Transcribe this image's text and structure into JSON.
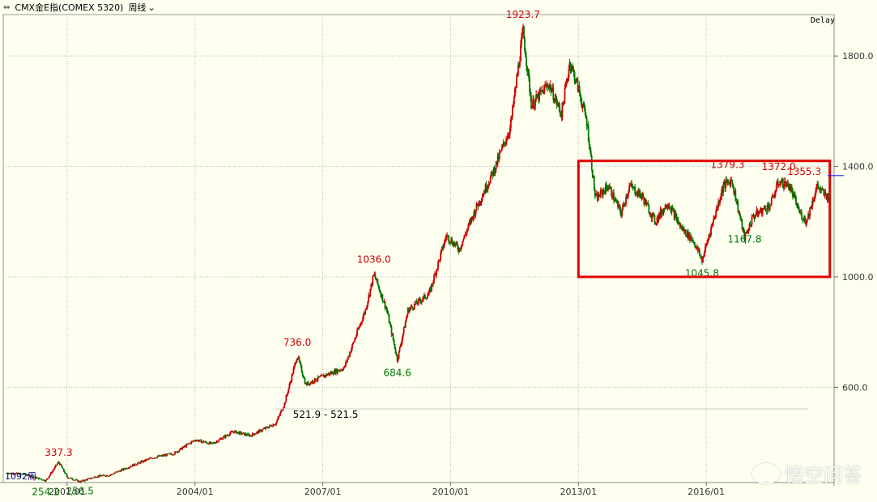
{
  "header": {
    "title": "CMX金E指(COMEX 5320)",
    "period_label": "周线",
    "delay_label": "Delay"
  },
  "watermark": {
    "text": "悟空问答"
  },
  "colors": {
    "up": "#cc0000",
    "down": "#007700",
    "grid": "#b8b8b8",
    "highlight_box": "#e00000",
    "axis_text": "#333333",
    "background": "#fffff0"
  },
  "chart_data": {
    "type": "candlestick",
    "y_ticks": [
      600,
      1000,
      1400,
      1800
    ],
    "y_tick_labels": [
      "600.0",
      "1000.0",
      "1400.0",
      "1800.0"
    ],
    "x_ticks": [
      "2001/01",
      "2004/01",
      "2007/01",
      "2010/01",
      "2013/01",
      "2016/01"
    ],
    "ylim": [
      255,
      1950
    ],
    "xlim": [
      1999.5,
      2019.0
    ],
    "grid": true,
    "bar_count_label": "1092周",
    "annotations": [
      {
        "x": 2000.5,
        "y": 254.2,
        "text": "254.2",
        "color": "down",
        "pos": "below"
      },
      {
        "x": 2000.8,
        "y": 337.3,
        "text": "337.3",
        "color": "up",
        "pos": "above"
      },
      {
        "x": 2001.3,
        "y": 256.5,
        "text": "256.5",
        "color": "down",
        "pos": "below"
      },
      {
        "x": 2006.4,
        "y": 736.0,
        "text": "736.0",
        "color": "up",
        "pos": "above"
      },
      {
        "x": 2008.2,
        "y": 1036.0,
        "text": "1036.0",
        "color": "up",
        "pos": "above"
      },
      {
        "x": 2008.75,
        "y": 684.6,
        "text": "684.6",
        "color": "down",
        "pos": "below"
      },
      {
        "x": 2011.7,
        "y": 1923.7,
        "text": "1923.7",
        "color": "up",
        "pos": "above"
      },
      {
        "x": 2015.9,
        "y": 1045.8,
        "text": "1045.8",
        "color": "down",
        "pos": "below"
      },
      {
        "x": 2016.5,
        "y": 1379.3,
        "text": "1379.3",
        "color": "up",
        "pos": "above"
      },
      {
        "x": 2017.7,
        "y": 1372.0,
        "text": "1372.0",
        "color": "up",
        "pos": "above"
      },
      {
        "x": 2016.9,
        "y": 1167.8,
        "text": "1167.8",
        "color": "down",
        "pos": "below"
      },
      {
        "x": 2018.3,
        "y": 1355.3,
        "text": "1355.3",
        "color": "up",
        "pos": "above"
      }
    ],
    "range_note": {
      "x": 2006.3,
      "y": 521.9,
      "text": "521.9 - 521.5"
    },
    "reference_line": {
      "y": 521.9,
      "x_start": 2005.9,
      "x_end": 2018.4
    },
    "highlight_box": {
      "x0": 2013.0,
      "x1": 2018.9,
      "y0": 1000,
      "y1": 1420
    },
    "last_price_marker": 1367,
    "price_path": [
      [
        1999.6,
        290
      ],
      [
        2000.0,
        285
      ],
      [
        2000.5,
        262
      ],
      [
        2000.8,
        330
      ],
      [
        2001.0,
        275
      ],
      [
        2001.3,
        258
      ],
      [
        2001.7,
        278
      ],
      [
        2002.0,
        282
      ],
      [
        2002.5,
        315
      ],
      [
        2003.0,
        345
      ],
      [
        2003.5,
        360
      ],
      [
        2004.0,
        410
      ],
      [
        2004.4,
        395
      ],
      [
        2004.9,
        440
      ],
      [
        2005.3,
        425
      ],
      [
        2005.9,
        470
      ],
      [
        2006.1,
        540
      ],
      [
        2006.4,
        715
      ],
      [
        2006.6,
        610
      ],
      [
        2007.0,
        640
      ],
      [
        2007.5,
        670
      ],
      [
        2008.0,
        880
      ],
      [
        2008.2,
        1010
      ],
      [
        2008.5,
        880
      ],
      [
        2008.75,
        700
      ],
      [
        2009.0,
        880
      ],
      [
        2009.5,
        940
      ],
      [
        2009.9,
        1150
      ],
      [
        2010.2,
        1100
      ],
      [
        2010.6,
        1250
      ],
      [
        2011.0,
        1380
      ],
      [
        2011.4,
        1540
      ],
      [
        2011.7,
        1890
      ],
      [
        2011.9,
        1620
      ],
      [
        2012.3,
        1700
      ],
      [
        2012.6,
        1590
      ],
      [
        2012.8,
        1780
      ],
      [
        2013.0,
        1680
      ],
      [
        2013.2,
        1560
      ],
      [
        2013.4,
        1280
      ],
      [
        2013.7,
        1330
      ],
      [
        2014.0,
        1230
      ],
      [
        2014.2,
        1330
      ],
      [
        2014.5,
        1290
      ],
      [
        2014.8,
        1200
      ],
      [
        2015.1,
        1270
      ],
      [
        2015.4,
        1180
      ],
      [
        2015.7,
        1130
      ],
      [
        2015.9,
        1060
      ],
      [
        2016.1,
        1170
      ],
      [
        2016.4,
        1330
      ],
      [
        2016.6,
        1350
      ],
      [
        2016.9,
        1140
      ],
      [
        2017.1,
        1220
      ],
      [
        2017.5,
        1260
      ],
      [
        2017.7,
        1345
      ],
      [
        2017.95,
        1330
      ],
      [
        2018.2,
        1230
      ],
      [
        2018.35,
        1200
      ],
      [
        2018.6,
        1330
      ],
      [
        2018.75,
        1300
      ],
      [
        2018.9,
        1287
      ]
    ]
  }
}
